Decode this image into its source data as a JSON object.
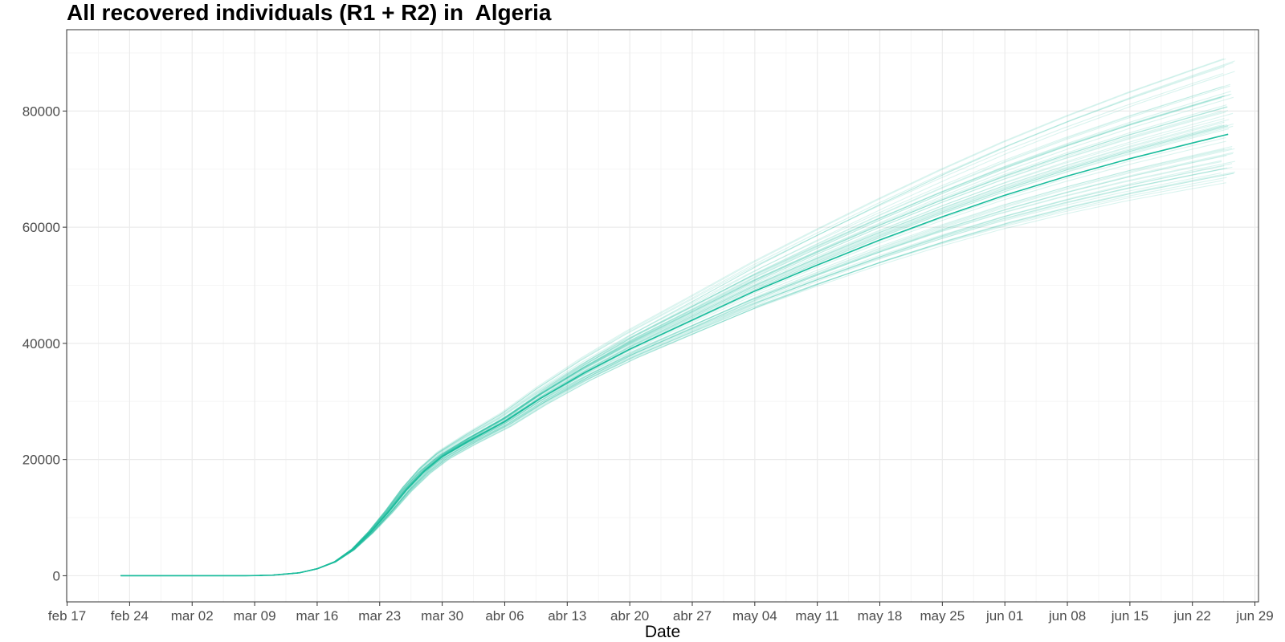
{
  "chart_data": {
    "type": "line",
    "title": "All recovered individuals (R1 + R2) in  Algeria",
    "xlabel": "Date",
    "ylabel": "",
    "x_ticks": [
      "feb 17",
      "feb 24",
      "mar 02",
      "mar 09",
      "mar 16",
      "mar 23",
      "mar 30",
      "abr 06",
      "abr 13",
      "abr 20",
      "abr 27",
      "may 04",
      "may 11",
      "may 18",
      "may 25",
      "jun 01",
      "jun 08",
      "jun 15",
      "jun 22",
      "jun 29"
    ],
    "y_ticks": [
      0,
      20000,
      40000,
      60000,
      80000
    ],
    "xlim": [
      "2020-02-17",
      "2020-06-29"
    ],
    "ylim": [
      -4500,
      94000
    ],
    "grid": true,
    "legend": "none",
    "colors": {
      "line": "#1abc9c",
      "ensemble": "#1abc9c",
      "grid_major": "#ebebeb",
      "grid_minor": "#f5f5f5",
      "panel_border": "#333333",
      "tick_text": "#4d4d4d"
    },
    "series": [
      {
        "role": "central estimate",
        "x": [
          "2020-02-23",
          "2020-03-01",
          "2020-03-08",
          "2020-03-11",
          "2020-03-14",
          "2020-03-16",
          "2020-03-18",
          "2020-03-20",
          "2020-03-22",
          "2020-03-24",
          "2020-03-26",
          "2020-03-28",
          "2020-03-30",
          "2020-04-02",
          "2020-04-06",
          "2020-04-10",
          "2020-04-15",
          "2020-04-20",
          "2020-04-27",
          "2020-05-04",
          "2020-05-11",
          "2020-05-18",
          "2020-05-25",
          "2020-06-01",
          "2020-06-08",
          "2020-06-15",
          "2020-06-22",
          "2020-06-26"
        ],
        "y": [
          0,
          0,
          0,
          100,
          500,
          1200,
          2400,
          4500,
          7500,
          11000,
          14800,
          18000,
          20500,
          23200,
          26500,
          30500,
          35000,
          39000,
          44000,
          49000,
          53500,
          57800,
          61800,
          65500,
          68800,
          71800,
          74500,
          76000
        ]
      }
    ],
    "ensemble": {
      "count": 60,
      "final_values_range": [
        67500,
        90000
      ],
      "end_date": "2020-06-26"
    }
  }
}
